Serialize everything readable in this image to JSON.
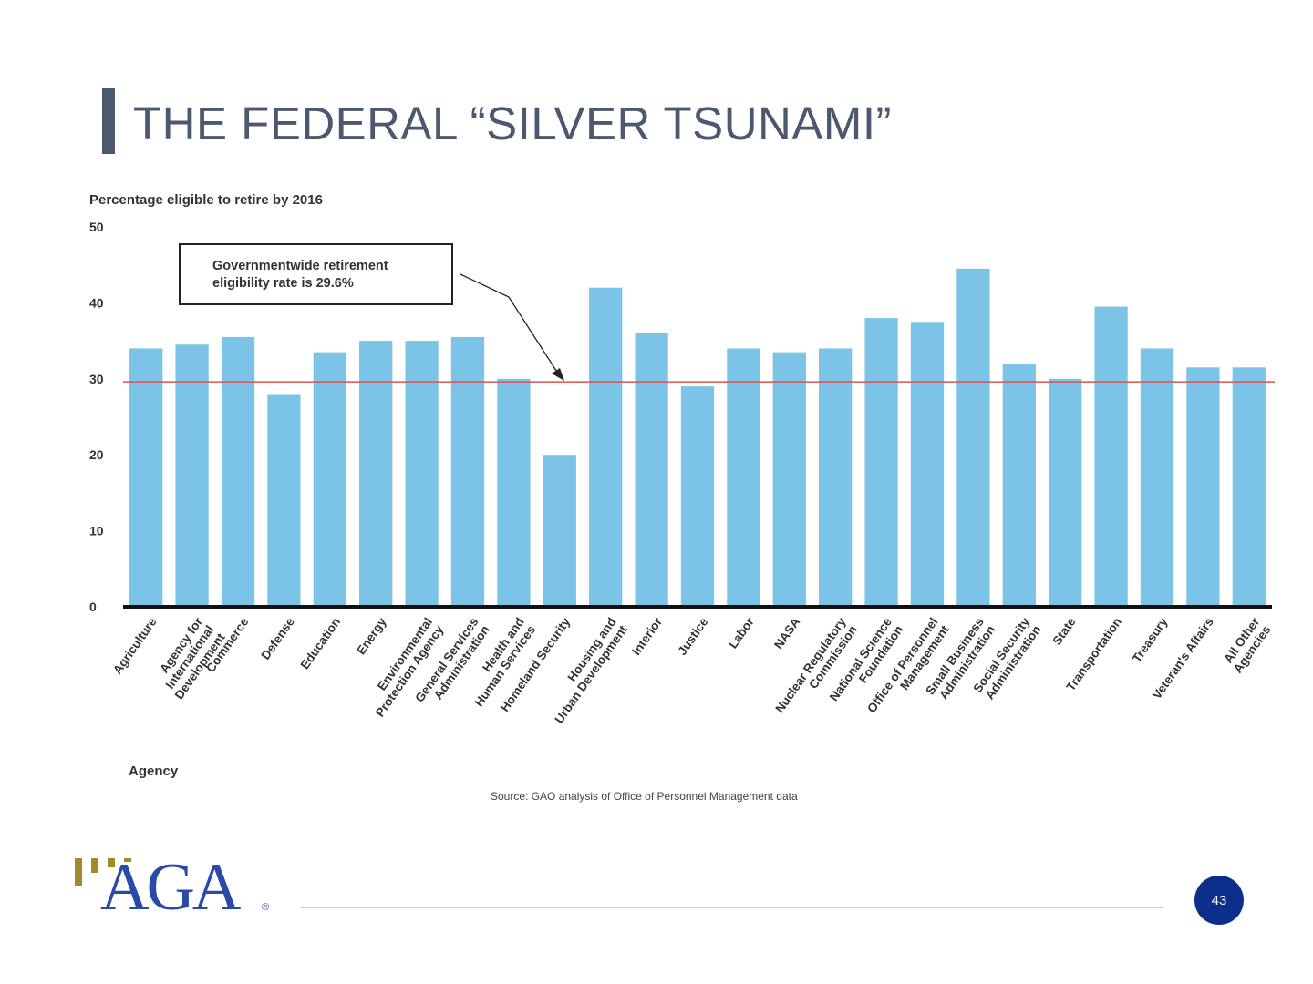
{
  "slide": {
    "title": "THE FEDERAL “SILVER TSUNAMI”",
    "page_number": "43",
    "logo_text": "AGA",
    "logo_reg": "®",
    "colors": {
      "title": "#4a5870",
      "bar": "#7cc3e8",
      "reference_line": "#d9534f",
      "logo_blue": "#2a4aa8",
      "logo_gold": "#a08a2a",
      "page_circle": "#0b2f8a"
    }
  },
  "chart_data": {
    "type": "bar",
    "title": "Percentage eligible to retire by 2016",
    "xlabel": "Agency",
    "ylabel": "",
    "ylim": [
      0,
      50
    ],
    "yticks": [
      0,
      10,
      20,
      30,
      40,
      50
    ],
    "grid": false,
    "source": "Source: GAO analysis of Office of Personnel Management data",
    "reference_line": {
      "value": 29.6,
      "label_lines": [
        "Governmentwide retirement",
        "eligibility rate is 29.6%"
      ]
    },
    "categories": [
      "Agriculture",
      "Agency for International Development",
      "Commerce",
      "Defense",
      "Education",
      "Energy",
      "Environmental Protection Agency",
      "General Services Administration",
      "Health and Human Services",
      "Homeland Security",
      "Housing and Urban Development",
      "Interior",
      "Justice",
      "Labor",
      "NASA",
      "Nuclear Regulatory Commission",
      "National Science Foundation",
      "Office of Personnel Management",
      "Small Business Administration",
      "Social Security Administration",
      "State",
      "Transportation",
      "Treasury",
      "Veteran's Affairs",
      "All Other Agencies"
    ],
    "category_label_lines": [
      [
        "Agriculture"
      ],
      [
        "Agency for",
        "International",
        "Development"
      ],
      [
        "Commerce"
      ],
      [
        "Defense"
      ],
      [
        "Education"
      ],
      [
        "Energy"
      ],
      [
        "Environmental",
        "Protection Agency"
      ],
      [
        "General Services",
        "Administration"
      ],
      [
        "Health and",
        "Human Services"
      ],
      [
        "Homeland Security"
      ],
      [
        "Housing and",
        "Urban Development"
      ],
      [
        "Interior"
      ],
      [
        "Justice"
      ],
      [
        "Labor"
      ],
      [
        "NASA"
      ],
      [
        "Nuclear Regulatory",
        "Commission"
      ],
      [
        "National Science",
        "Foundation"
      ],
      [
        "Office of Personnel",
        "Management"
      ],
      [
        "Small Business",
        "Administration"
      ],
      [
        "Social Security",
        "Administration"
      ],
      [
        "State"
      ],
      [
        "Transportation"
      ],
      [
        "Treasury"
      ],
      [
        "Veteran's Affairs"
      ],
      [
        "All Other",
        "Agencies"
      ]
    ],
    "values": [
      34,
      34.5,
      35.5,
      28,
      33.5,
      35,
      35,
      35.5,
      30,
      20,
      42,
      36,
      29,
      34,
      33.5,
      34,
      38,
      37.5,
      44.5,
      32,
      30,
      39.5,
      34,
      31.5,
      31.5
    ]
  }
}
